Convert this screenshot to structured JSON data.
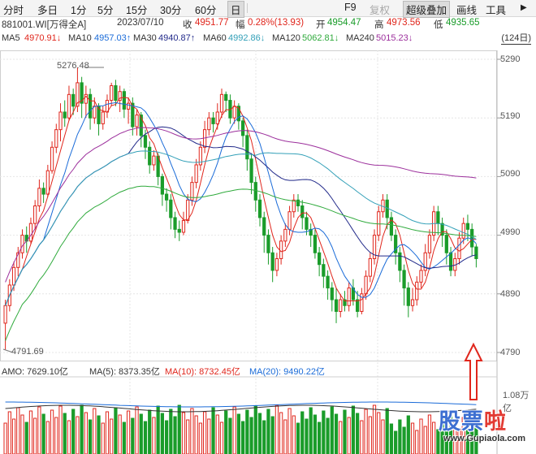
{
  "toolbar": {
    "periods": [
      "分时",
      "多日",
      "1分",
      "5分",
      "15分",
      "30分",
      "60分",
      "日"
    ],
    "active_period": "日",
    "tools": [
      "F9",
      "复权",
      "超级叠加",
      "画线",
      "工具"
    ],
    "more_arrow": "▶"
  },
  "quote": {
    "code_name": "881001.WI[万得全A]",
    "date": "2023/07/10",
    "close_label": "收",
    "close": "4951.77",
    "change_label": "幅",
    "change": "0.28%(13.93)",
    "open_label": "开",
    "open": "4954.47",
    "high_label": "高",
    "high": "4973.56",
    "low_label": "低",
    "low": "4935.65"
  },
  "ma_bar": {
    "items": [
      {
        "label": "MA5",
        "value": "4970.91↓",
        "color": "#e0261c"
      },
      {
        "label": "MA10",
        "value": "4957.03↑",
        "color": "#1a6bd8"
      },
      {
        "label": "MA30",
        "value": "4940.87↑",
        "color": "#222a8a"
      },
      {
        "label": "MA60",
        "value": "4992.86↓",
        "color": "#33a0b8"
      },
      {
        "label": "MA120",
        "value": "5062.81↓",
        "color": "#2faa3c"
      },
      {
        "label": "MA240",
        "value": "5015.23↓",
        "color": "#9c2f9c"
      }
    ],
    "days": "(124日)"
  },
  "axis": {
    "y_ticks": [
      "5290",
      "5190",
      "5090",
      "4990",
      "4890",
      "4790"
    ],
    "high_annotation": "5276.48",
    "low_annotation": "4791.69"
  },
  "amo": {
    "label": "AMO: 7629.10亿",
    "ma5": "MA(5): 8373.35亿",
    "ma10": "MA(10): 8732.45亿",
    "ma20": "MA(20): 9490.22亿",
    "scale": "1.08万亿"
  },
  "watermark": {
    "chars": [
      "股",
      "票",
      "啦"
    ],
    "url": "www.Gupiaola.com"
  },
  "colors": {
    "up": "#e0261c",
    "down": "#1a9c2a",
    "arrow": "#e0261c"
  },
  "chart_data": {
    "type": "candlestick",
    "ylim": [
      4780,
      5300
    ],
    "candles": [
      [
        4840,
        4870,
        4795,
        4880
      ],
      [
        4870,
        4905,
        4860,
        4915
      ],
      [
        4905,
        4935,
        4895,
        4945
      ],
      [
        4935,
        4960,
        4920,
        4970
      ],
      [
        4960,
        4990,
        4950,
        5000
      ],
      [
        4990,
        4980,
        4960,
        5005
      ],
      [
        4980,
        5010,
        4975,
        5020
      ],
      [
        5010,
        5040,
        5000,
        5050
      ],
      [
        5040,
        5070,
        5030,
        5085
      ],
      [
        5070,
        5060,
        5045,
        5080
      ],
      [
        5060,
        5100,
        5055,
        5110
      ],
      [
        5100,
        5140,
        5095,
        5150
      ],
      [
        5140,
        5170,
        5130,
        5180
      ],
      [
        5170,
        5200,
        5150,
        5215
      ],
      [
        5200,
        5190,
        5175,
        5220
      ],
      [
        5190,
        5230,
        5185,
        5245
      ],
      [
        5230,
        5210,
        5195,
        5240
      ],
      [
        5210,
        5250,
        5200,
        5276
      ],
      [
        5250,
        5215,
        5190,
        5260
      ],
      [
        5215,
        5230,
        5190,
        5245
      ],
      [
        5230,
        5190,
        5170,
        5240
      ],
      [
        5190,
        5210,
        5180,
        5225
      ],
      [
        5210,
        5180,
        5160,
        5215
      ],
      [
        5180,
        5200,
        5170,
        5210
      ],
      [
        5200,
        5220,
        5190,
        5230
      ],
      [
        5220,
        5245,
        5210,
        5250
      ],
      [
        5245,
        5220,
        5210,
        5255
      ],
      [
        5220,
        5235,
        5200,
        5245
      ],
      [
        5235,
        5205,
        5190,
        5240
      ],
      [
        5205,
        5215,
        5180,
        5225
      ],
      [
        5215,
        5175,
        5160,
        5225
      ],
      [
        5175,
        5195,
        5160,
        5205
      ],
      [
        5195,
        5160,
        5140,
        5200
      ],
      [
        5160,
        5140,
        5120,
        5170
      ],
      [
        5140,
        5110,
        5095,
        5150
      ],
      [
        5110,
        5125,
        5100,
        5135
      ],
      [
        5125,
        5090,
        5075,
        5130
      ],
      [
        5090,
        5060,
        5040,
        5095
      ],
      [
        5060,
        5050,
        5030,
        5070
      ],
      [
        5050,
        5020,
        5000,
        5060
      ],
      [
        5020,
        5000,
        4985,
        5030
      ],
      [
        5000,
        4995,
        4980,
        5015
      ],
      [
        4995,
        5015,
        4990,
        5030
      ],
      [
        5015,
        5050,
        5010,
        5060
      ],
      [
        5050,
        5080,
        5040,
        5090
      ],
      [
        5080,
        5110,
        5070,
        5120
      ],
      [
        5110,
        5140,
        5100,
        5150
      ],
      [
        5140,
        5170,
        5130,
        5185
      ],
      [
        5170,
        5190,
        5160,
        5200
      ],
      [
        5190,
        5180,
        5165,
        5200
      ],
      [
        5180,
        5200,
        5170,
        5215
      ],
      [
        5200,
        5230,
        5190,
        5240
      ],
      [
        5230,
        5220,
        5200,
        5235
      ],
      [
        5220,
        5190,
        5180,
        5230
      ],
      [
        5190,
        5210,
        5180,
        5220
      ],
      [
        5210,
        5185,
        5170,
        5215
      ],
      [
        5185,
        5160,
        5140,
        5190
      ],
      [
        5160,
        5120,
        5100,
        5170
      ],
      [
        5120,
        5080,
        5060,
        5130
      ],
      [
        5080,
        5050,
        5030,
        5090
      ],
      [
        5050,
        5020,
        5005,
        5060
      ],
      [
        5020,
        4990,
        4960,
        5030
      ],
      [
        4990,
        4960,
        4940,
        5000
      ],
      [
        4960,
        4930,
        4910,
        4970
      ],
      [
        4930,
        4950,
        4920,
        4960
      ],
      [
        4950,
        4980,
        4940,
        4990
      ],
      [
        4980,
        5000,
        4970,
        5010
      ],
      [
        5000,
        5030,
        4990,
        5040
      ],
      [
        5030,
        5050,
        5020,
        5060
      ],
      [
        5050,
        5040,
        5030,
        5060
      ],
      [
        5040,
        5020,
        5000,
        5050
      ],
      [
        5020,
        5000,
        4990,
        5030
      ],
      [
        5000,
        4990,
        4970,
        5010
      ],
      [
        4990,
        4960,
        4950,
        5000
      ],
      [
        4960,
        4940,
        4920,
        4970
      ],
      [
        4940,
        4920,
        4900,
        4950
      ],
      [
        4920,
        4900,
        4880,
        4930
      ],
      [
        4900,
        4880,
        4860,
        4910
      ],
      [
        4880,
        4860,
        4840,
        4900
      ],
      [
        4860,
        4880,
        4850,
        4890
      ],
      [
        4880,
        4870,
        4860,
        4895
      ],
      [
        4870,
        4900,
        4860,
        4910
      ],
      [
        4900,
        4880,
        4870,
        4915
      ],
      [
        4880,
        4860,
        4850,
        4895
      ],
      [
        4860,
        4890,
        4855,
        4900
      ],
      [
        4890,
        4920,
        4880,
        4930
      ],
      [
        4920,
        4950,
        4910,
        4960
      ],
      [
        4950,
        4990,
        4940,
        5000
      ],
      [
        4990,
        5030,
        4980,
        5040
      ],
      [
        5030,
        5050,
        5020,
        5060
      ],
      [
        5050,
        5020,
        5000,
        5060
      ],
      [
        5020,
        4990,
        4980,
        5030
      ],
      [
        4990,
        4960,
        4940,
        5000
      ],
      [
        4960,
        4930,
        4910,
        4970
      ],
      [
        4930,
        4900,
        4870,
        4940
      ],
      [
        4900,
        4870,
        4850,
        4910
      ],
      [
        4870,
        4880,
        4860,
        4900
      ],
      [
        4880,
        4910,
        4870,
        4920
      ],
      [
        4910,
        4930,
        4900,
        4940
      ],
      [
        4930,
        4960,
        4920,
        4975
      ],
      [
        4960,
        4990,
        4950,
        5000
      ],
      [
        4990,
        5030,
        4980,
        5040
      ],
      [
        5030,
        5010,
        4990,
        5040
      ],
      [
        5010,
        4990,
        4970,
        5020
      ],
      [
        4990,
        4960,
        4940,
        5000
      ],
      [
        4960,
        4930,
        4920,
        4970
      ],
      [
        4930,
        4950,
        4920,
        4960
      ],
      [
        4950,
        4985,
        4940,
        4995
      ],
      [
        4985,
        5010,
        4975,
        5020
      ],
      [
        5010,
        5000,
        4980,
        5025
      ],
      [
        5000,
        4970,
        4955,
        5010
      ],
      [
        4970,
        4950,
        4935,
        4975
      ]
    ],
    "ma5_series": [],
    "note": ""
  }
}
